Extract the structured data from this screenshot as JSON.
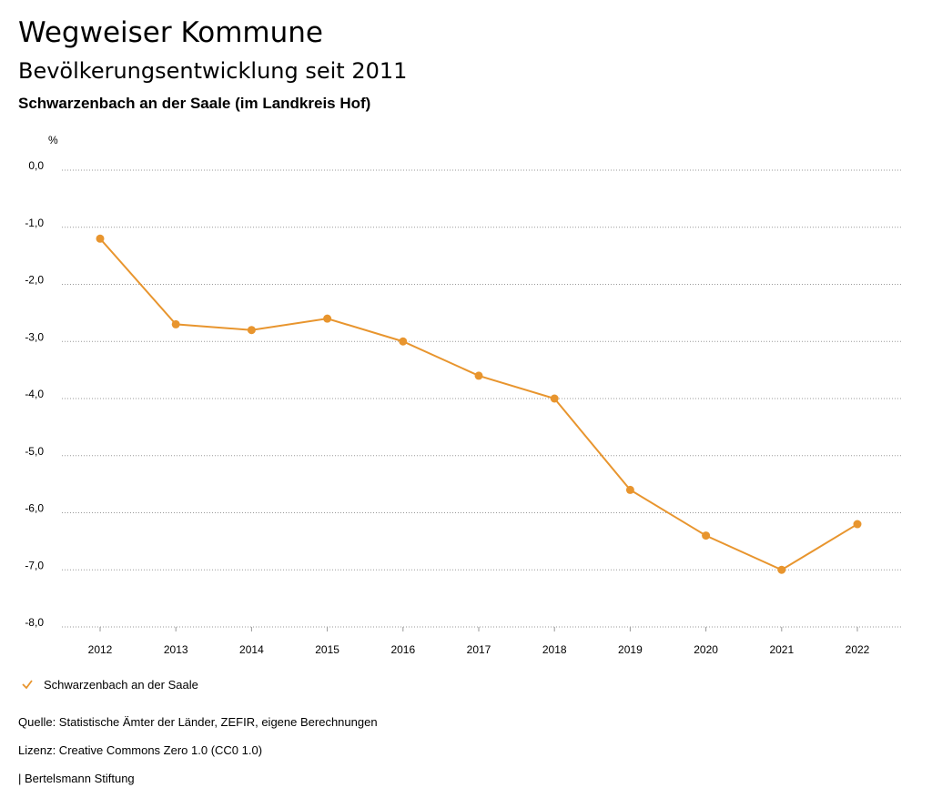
{
  "header": {
    "title": "Wegweiser Kommune",
    "subtitle": "Bevölkerungsentwicklung seit 2011",
    "region": "Schwarzenbach an der Saale (im Landkreis Hof)"
  },
  "chart_data": {
    "type": "line",
    "unit": "%",
    "x": [
      "2012",
      "2013",
      "2014",
      "2015",
      "2016",
      "2017",
      "2018",
      "2019",
      "2020",
      "2021",
      "2022"
    ],
    "series": [
      {
        "name": "Schwarzenbach an der Saale",
        "values": [
          -1.2,
          -2.7,
          -2.8,
          -2.6,
          -3.0,
          -3.6,
          -4.0,
          -5.6,
          -6.4,
          -7.0,
          -6.2
        ],
        "color": "#E8952E"
      }
    ],
    "ylim": [
      -8.0,
      0.0
    ],
    "yticks": [
      "0,0",
      "-1,0",
      "-2,0",
      "-3,0",
      "-4,0",
      "-5,0",
      "-6,0",
      "-7,0",
      "-8,0"
    ],
    "ytick_values": [
      0,
      -1,
      -2,
      -3,
      -4,
      -5,
      -6,
      -7,
      -8
    ],
    "grid": true,
    "legend_position": "bottom-left"
  },
  "legend": {
    "label": "Schwarzenbach an der Saale"
  },
  "footer": {
    "source": "Quelle: Statistische Ämter der Länder, ZEFIR, eigene Berechnungen",
    "license": "Lizenz: Creative Commons Zero 1.0 (CC0 1.0)",
    "publisher": "| Bertelsmann Stiftung"
  }
}
